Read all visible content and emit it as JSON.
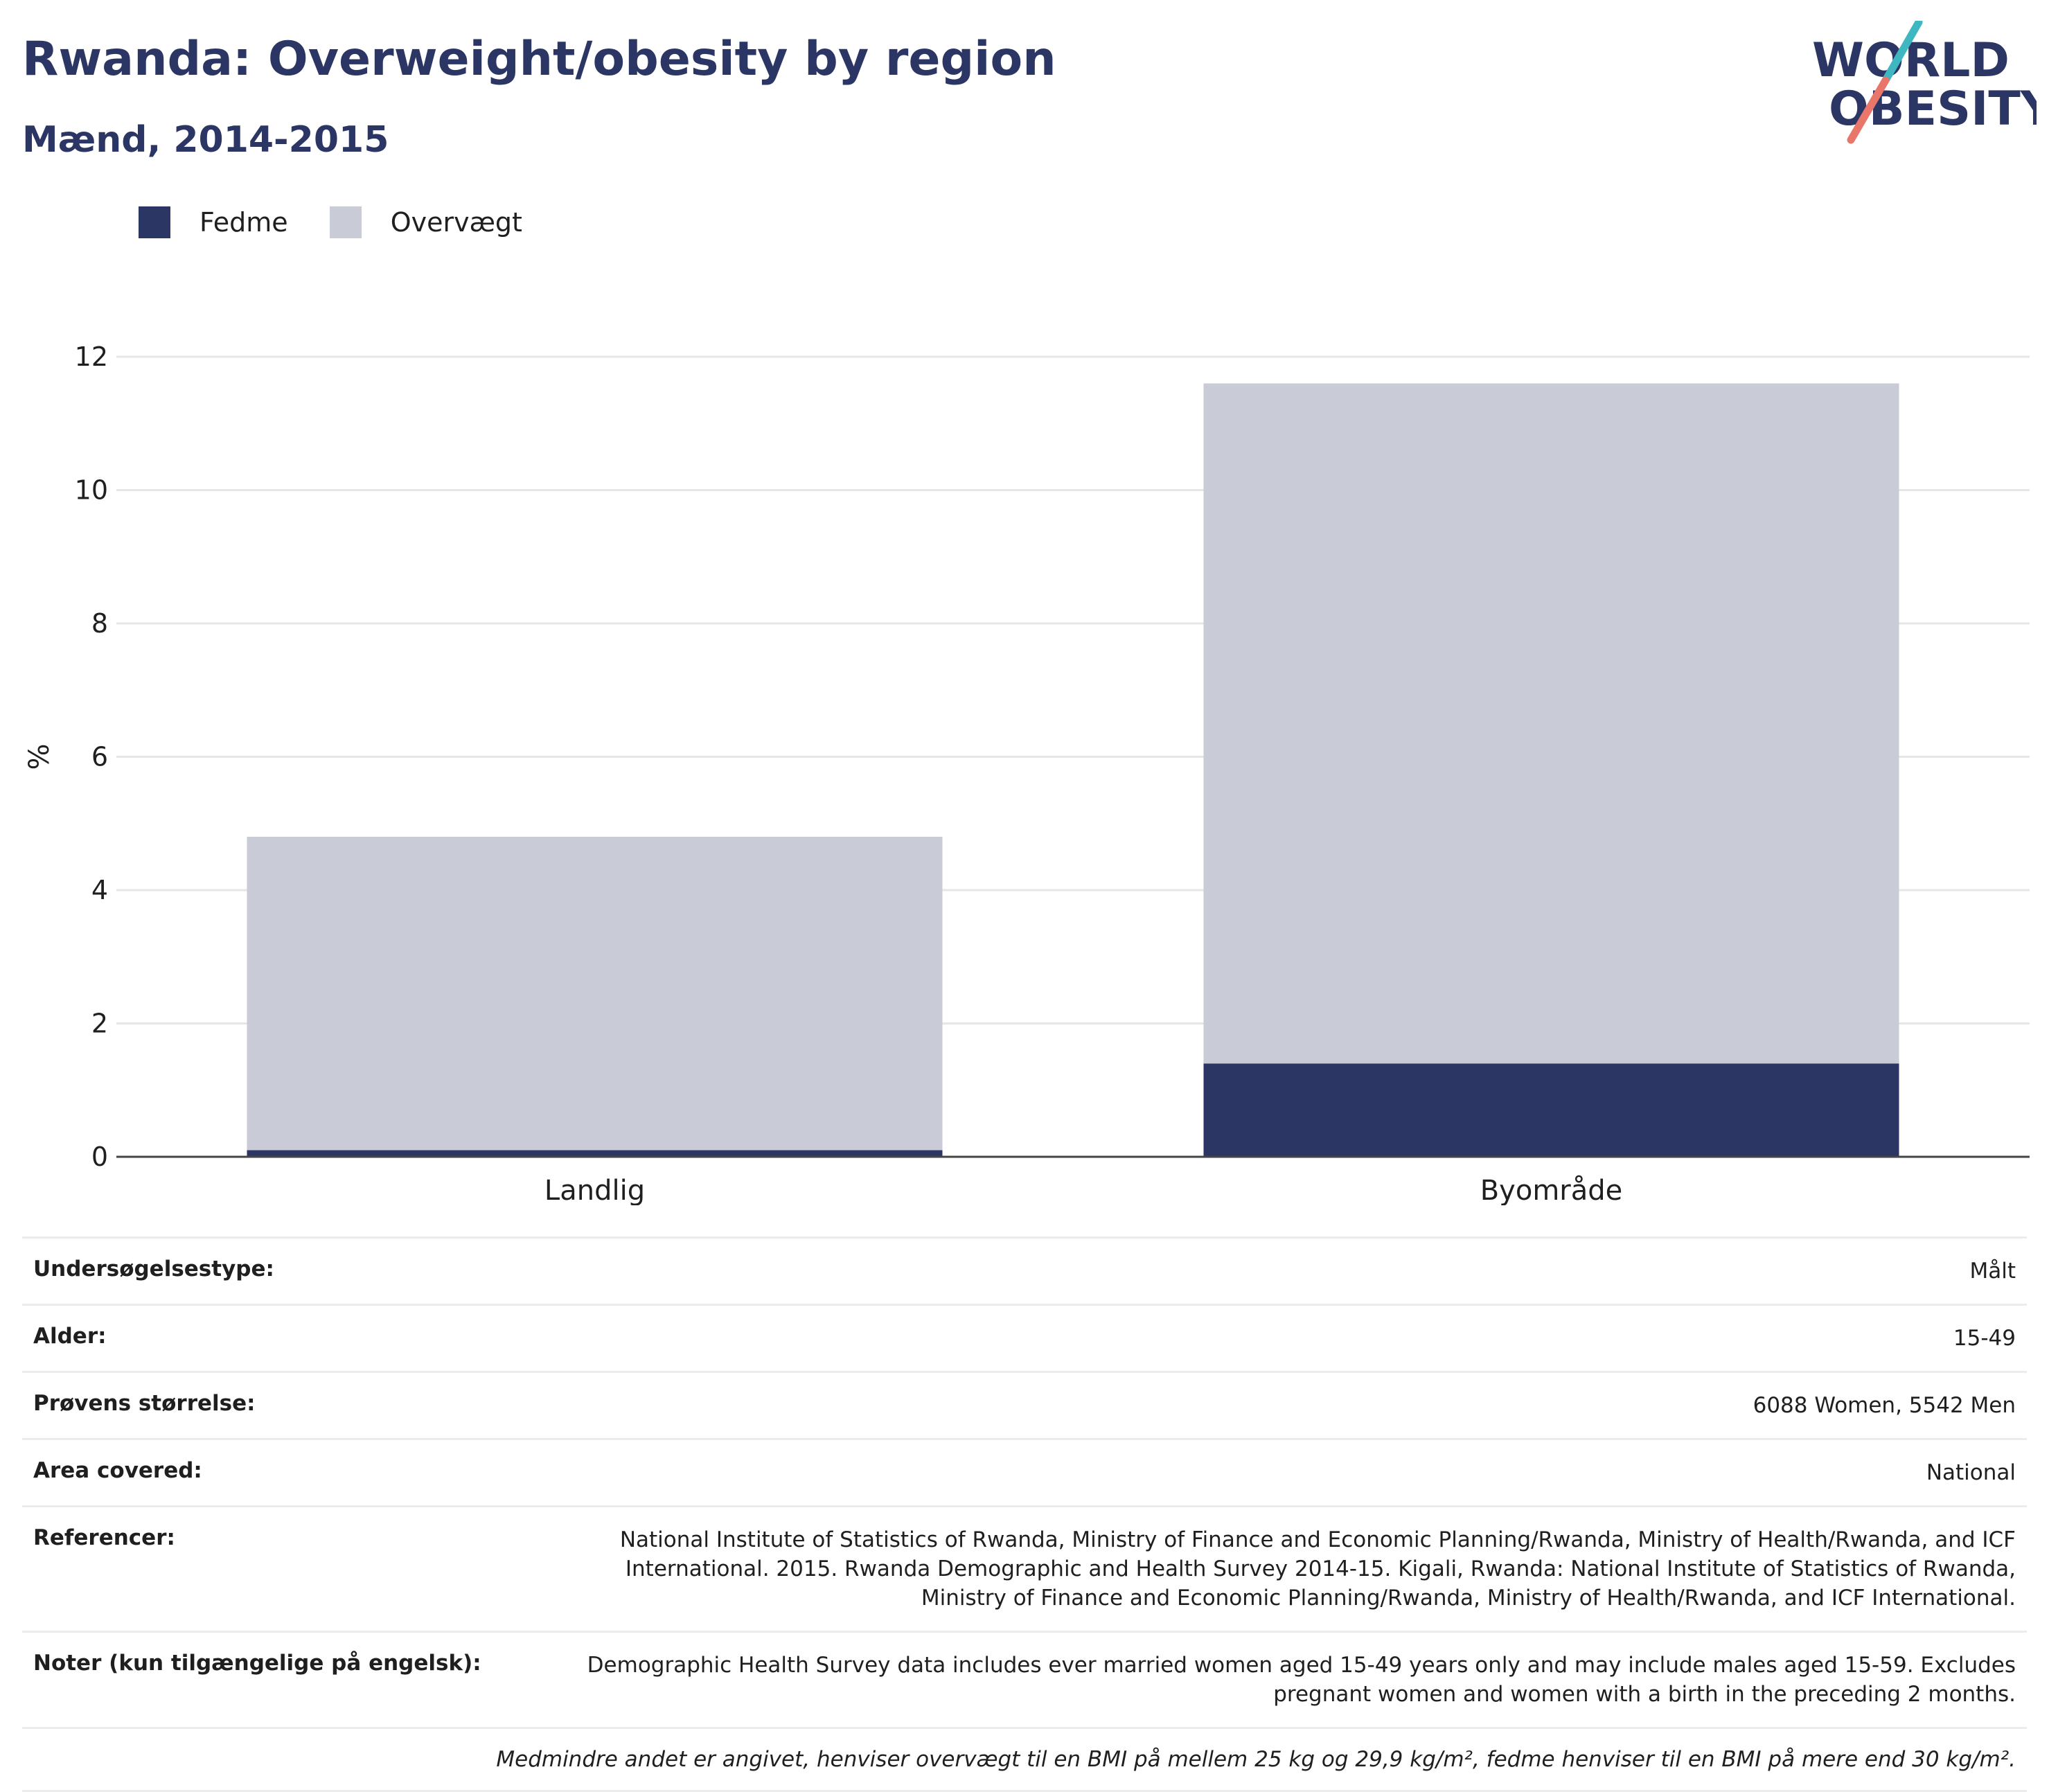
{
  "header": {
    "title": "Rwanda: Overweight/obesity by region",
    "subtitle": "Mænd, 2014-2015",
    "logo_line1": "WORLD",
    "logo_line2": "OBESITY"
  },
  "colors": {
    "fedme": "#2b3665",
    "overvaegt": "#c9cbd7",
    "grid": "#e6e6e6",
    "axis": "#444444",
    "logo_text": "#2b3665",
    "logo_teal": "#3fb7c1",
    "logo_coral": "#e8766a"
  },
  "legend": {
    "items": [
      {
        "label": "Fedme",
        "color": "#2b3665"
      },
      {
        "label": "Overvægt",
        "color": "#c9cbd7"
      }
    ]
  },
  "chart_data": {
    "type": "bar",
    "stacked": true,
    "categories": [
      "Landlig",
      "Byområde"
    ],
    "series": [
      {
        "name": "Fedme",
        "values": [
          0.1,
          1.4
        ]
      },
      {
        "name": "Overvægt",
        "values": [
          4.7,
          10.2
        ]
      }
    ],
    "ylabel": "%",
    "xlabel": "",
    "ylim": [
      0,
      12
    ],
    "yticks": [
      0,
      2,
      4,
      6,
      8,
      10,
      12
    ],
    "grid": true,
    "legend_position": "top-left"
  },
  "meta": {
    "rows": [
      {
        "label": "Undersøgelsestype:",
        "value": "Målt"
      },
      {
        "label": "Alder:",
        "value": "15-49"
      },
      {
        "label": "Prøvens størrelse:",
        "value": "6088 Women, 5542 Men"
      },
      {
        "label": "Area covered:",
        "value": "National"
      },
      {
        "label": "Referencer:",
        "value": "National Institute of Statistics of Rwanda, Ministry of Finance and Economic Planning/Rwanda, Ministry of Health/Rwanda, and ICF International. 2015. Rwanda Demographic and Health Survey 2014-15. Kigali, Rwanda: National Institute of Statistics of Rwanda, Ministry of Finance and Economic Planning/Rwanda, Ministry of Health/Rwanda, and ICF International."
      },
      {
        "label": "Noter (kun tilgængelige på engelsk):",
        "value": "Demographic Health Survey data includes ever married women aged 15-49 years only and may include males aged 15-59. Excludes pregnant women and women with a birth in the preceding 2 months."
      }
    ],
    "footnote": "Medmindre andet er angivet, henviser overvægt til en BMI på mellem 25 kg og 29,9 kg/m², fedme henviser til en BMI på mere end 30 kg/m²."
  }
}
